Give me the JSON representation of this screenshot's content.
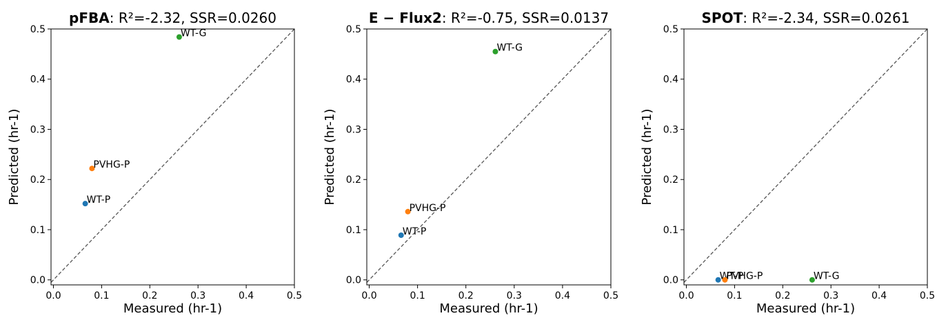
{
  "chart_data": [
    {
      "type": "scatter",
      "title": {
        "bold": "pFBA",
        "metrics": ": R²=-2.32, SSR=0.0260"
      },
      "xlabel": "Measured (hr-1)",
      "ylabel": "Predicted (hr-1)",
      "xlim": [
        -0.005,
        0.5
      ],
      "ylim": [
        -0.01,
        0.5
      ],
      "xticks": [
        "0.0",
        "0.1",
        "0.2",
        "0.3",
        "0.4",
        "0.5"
      ],
      "yticks": [
        "0.0",
        "0.1",
        "0.2",
        "0.3",
        "0.4",
        "0.5"
      ],
      "diagonal": true,
      "points": [
        {
          "label": "WT-P",
          "x": 0.066,
          "y": 0.152,
          "color": "#1f77b4"
        },
        {
          "label": "PVHG-P",
          "x": 0.08,
          "y": 0.222,
          "color": "#ff7f0e"
        },
        {
          "label": "WT-G",
          "x": 0.261,
          "y": 0.484,
          "color": "#2ca02c"
        }
      ]
    },
    {
      "type": "scatter",
      "title": {
        "bold": "E − Flux2",
        "metrics": ": R²=-0.75, SSR=0.0137"
      },
      "xlabel": "Measured (hr-1)",
      "ylabel": "Predicted (hr-1)",
      "xlim": [
        -0.005,
        0.5
      ],
      "ylim": [
        -0.01,
        0.5
      ],
      "xticks": [
        "0.0",
        "0.1",
        "0.2",
        "0.3",
        "0.4",
        "0.5"
      ],
      "yticks": [
        "0.0",
        "0.1",
        "0.2",
        "0.3",
        "0.4",
        "0.5"
      ],
      "diagonal": true,
      "points": [
        {
          "label": "WT-P",
          "x": 0.066,
          "y": 0.089,
          "color": "#1f77b4"
        },
        {
          "label": "PVHG-P",
          "x": 0.08,
          "y": 0.136,
          "color": "#ff7f0e"
        },
        {
          "label": "WT-G",
          "x": 0.261,
          "y": 0.455,
          "color": "#2ca02c"
        }
      ]
    },
    {
      "type": "scatter",
      "title": {
        "bold": "SPOT",
        "metrics": ": R²=-2.34, SSR=0.0261"
      },
      "xlabel": "Measured (hr-1)",
      "ylabel": "Predicted (hr-1)",
      "xlim": [
        -0.005,
        0.5
      ],
      "ylim": [
        -0.01,
        0.5
      ],
      "xticks": [
        "0.0",
        "0.1",
        "0.2",
        "0.3",
        "0.4",
        "0.5"
      ],
      "yticks": [
        "0.0",
        "0.1",
        "0.2",
        "0.3",
        "0.4",
        "0.5"
      ],
      "diagonal": true,
      "points": [
        {
          "label": "WT-P",
          "x": 0.066,
          "y": 0.0,
          "color": "#1f77b4"
        },
        {
          "label": "PVHG-P",
          "x": 0.08,
          "y": 0.0,
          "color": "#ff7f0e"
        },
        {
          "label": "WT-G",
          "x": 0.261,
          "y": 0.0,
          "color": "#2ca02c"
        }
      ]
    }
  ]
}
